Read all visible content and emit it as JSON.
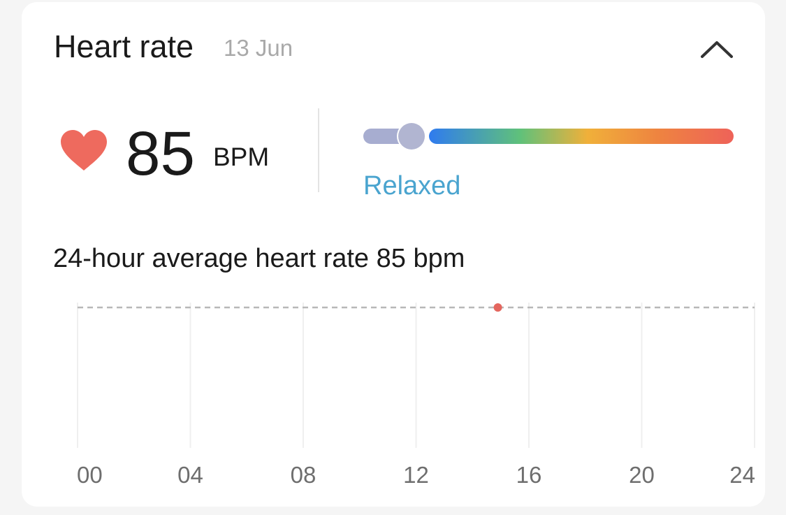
{
  "header": {
    "title": "Heart rate",
    "date": "13 Jun",
    "collapse_icon": "chevron-up-icon"
  },
  "current": {
    "icon": "heart-icon",
    "value": "85",
    "unit": "BPM",
    "zone": "Relaxed",
    "scale_position": 0.13,
    "colors": {
      "heart": "#ee6a5e",
      "zone_text": "#4aa4cf",
      "resting_segment": "#a7add0",
      "knob": "#b1b5d1",
      "gradient": [
        "#2f7bef",
        "#60c17a",
        "#f0b03a",
        "#ee8440",
        "#ee6259"
      ]
    }
  },
  "summary": {
    "text": "24-hour average heart rate 85 bpm"
  },
  "chart_data": {
    "type": "scatter",
    "x_unit": "hour",
    "xlim": [
      0,
      24
    ],
    "x_ticks": [
      "00",
      "04",
      "08",
      "12",
      "16",
      "20",
      "24"
    ],
    "x_tick_values": [
      0,
      4,
      8,
      12,
      16,
      20,
      24
    ],
    "points": [
      {
        "x": 14.9,
        "y": 85
      }
    ],
    "average_line": 85,
    "grid": "vertical",
    "colors": {
      "point": "#e4665e",
      "average_line": "#b8b8b8",
      "grid": "#efefef"
    }
  }
}
